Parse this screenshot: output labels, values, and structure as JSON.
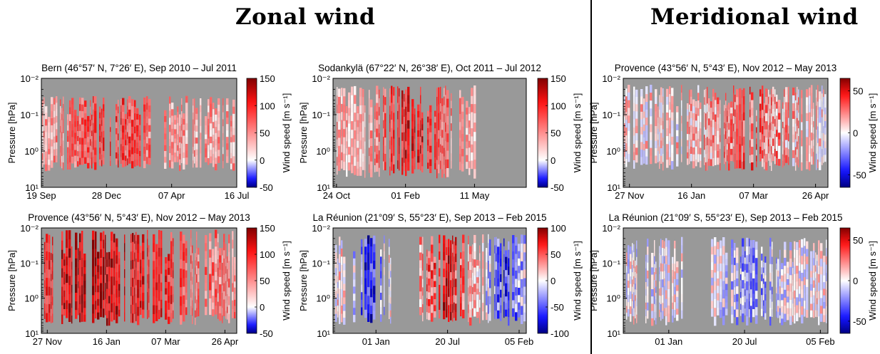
{
  "headings": {
    "zonal": "Zonal wind",
    "meridional": "Meridional wind"
  },
  "colors": {
    "background": "#999999",
    "positive": "#c00000",
    "negative": "#0000c0",
    "zero": "#ffffff"
  },
  "chart_data": [
    {
      "type": "heatmap",
      "title": "Bern (46°57′ N, 7°26′ E), Sep 2010 – Jul 2011",
      "ylabel": "Pressure [hPa]",
      "colorbar_label": "Wind speed [m s⁻¹]",
      "clim": [
        -50,
        150
      ],
      "colorbar_ticks": [
        "150",
        "100",
        "50",
        "0",
        "-50"
      ],
      "y_scale": "log",
      "ylim": [
        10,
        0.01
      ],
      "y_ticks": [
        "10⁻²",
        "10⁻¹",
        "10⁰",
        "10¹"
      ],
      "x_ticks": [
        "19 Sep",
        "28 Dec",
        "07 Apr",
        "16 Jul"
      ],
      "x_days": [
        0,
        100,
        200,
        300
      ],
      "xlim": [
        0,
        300
      ],
      "observation_gaps": [
        [
          165,
          182
        ]
      ],
      "profile_top_hPa": 0.03,
      "profile_bottom_hPa": 3.5,
      "peak_periods": [
        {
          "center": 105,
          "width": 60,
          "value": 90
        }
      ],
      "background_value": 40
    },
    {
      "type": "heatmap",
      "title": "Sodankylä (67°22′ N, 26°38′ E), Oct 2011 – Jul 2012",
      "ylabel": "Pressure [hPa]",
      "colorbar_label": "Wind speed [m s⁻¹]",
      "clim": [
        -50,
        150
      ],
      "colorbar_ticks": [
        "150",
        "100",
        "50",
        "0",
        "-50"
      ],
      "y_scale": "log",
      "ylim": [
        10,
        0.01
      ],
      "y_ticks": [
        "10⁻²",
        "10⁻¹",
        "10⁰",
        "10¹"
      ],
      "x_ticks": [
        "24 Oct",
        "01 Feb",
        "11 May"
      ],
      "x_days": [
        0,
        100,
        200
      ],
      "xlim": [
        -5,
        275
      ],
      "observation_gaps": [
        [
          200,
          275
        ]
      ],
      "profile_top_hPa": 0.015,
      "profile_bottom_hPa": 6,
      "peak_periods": [
        {
          "center": 110,
          "width": 50,
          "value": 110
        }
      ],
      "background_value": 30
    },
    {
      "type": "heatmap",
      "title": "Provence (43°56′ N, 5°43′ E), Nov 2012 – May 2013",
      "ylabel": "Pressure [hPa]",
      "colorbar_label": "Wind speed [m s⁻¹]",
      "clim": [
        -65,
        65
      ],
      "colorbar_ticks": [
        "50",
        "0",
        "-50"
      ],
      "y_scale": "log",
      "ylim": [
        10,
        0.01
      ],
      "y_ticks": [
        "10⁻²",
        "10⁻¹",
        "10⁰",
        "10¹"
      ],
      "x_ticks": [
        "27 Nov",
        "16 Jan",
        "07 Mar",
        "26 Apr"
      ],
      "x_days": [
        0,
        50,
        100,
        150
      ],
      "xlim": [
        -5,
        160
      ],
      "observation_gaps": [],
      "profile_top_hPa": 0.015,
      "profile_bottom_hPa": 3.5,
      "peak_periods": [
        {
          "center": 95,
          "width": 35,
          "value": 30
        }
      ],
      "background_value": 5
    },
    {
      "type": "heatmap",
      "title": "Provence (43°56′ N, 5°43′ E), Nov 2012 – May 2013",
      "ylabel": "Pressure [hPa]",
      "colorbar_label": "Wind speed [m s⁻¹]",
      "clim": [
        -50,
        150
      ],
      "colorbar_ticks": [
        "150",
        "100",
        "50",
        "0",
        "-50"
      ],
      "y_scale": "log",
      "ylim": [
        10,
        0.01
      ],
      "y_ticks": [
        "10⁻²",
        "10⁻¹",
        "10⁰",
        "10¹"
      ],
      "x_ticks": [
        "27 Nov",
        "16 Jan",
        "07 Mar",
        "26 Apr"
      ],
      "x_days": [
        0,
        50,
        100,
        150
      ],
      "xlim": [
        -5,
        160
      ],
      "observation_gaps": [],
      "profile_top_hPa": 0.011,
      "profile_bottom_hPa": 6,
      "peak_periods": [
        {
          "center": 30,
          "width": 40,
          "value": 130
        },
        {
          "center": 90,
          "width": 35,
          "value": 95
        }
      ],
      "background_value": 55
    },
    {
      "type": "heatmap",
      "title": "La Réunion (21°09′ S, 55°23′ E), Sep 2013 – Feb 2015",
      "ylabel": "Pressure [hPa]",
      "colorbar_label": "Wind speed [m s⁻¹]",
      "clim": [
        -100,
        100
      ],
      "colorbar_ticks": [
        "100",
        "50",
        "0",
        "-50",
        "-100"
      ],
      "y_scale": "log",
      "ylim": [
        10,
        0.01
      ],
      "y_ticks": [
        "10⁻²",
        "10⁻¹",
        "10⁰",
        "10¹"
      ],
      "x_ticks": [
        "01 Jan",
        "20 Jul",
        "05 Feb"
      ],
      "x_days": [
        0,
        200,
        400
      ],
      "xlim": [
        -120,
        420
      ],
      "observation_gaps": [
        [
          -85,
          -65
        ],
        [
          40,
          110
        ]
      ],
      "profile_top_hPa": 0.015,
      "profile_bottom_hPa": 6,
      "peak_periods": [
        {
          "center": -20,
          "width": 40,
          "value": -70
        },
        {
          "center": 190,
          "width": 70,
          "value": 70
        },
        {
          "center": 360,
          "width": 50,
          "value": -60
        }
      ],
      "background_value": 10
    },
    {
      "type": "heatmap",
      "title": "La Réunion (21°09′ S, 55°23′ E), Sep 2013 – Feb 2015",
      "ylabel": "Pressure [hPa]",
      "colorbar_label": "Wind speed [m s⁻¹]",
      "clim": [
        -65,
        65
      ],
      "colorbar_ticks": [
        "50",
        "0",
        "-50"
      ],
      "y_scale": "log",
      "ylim": [
        10,
        0.01
      ],
      "y_ticks": [
        "10⁻²",
        "10⁻¹",
        "10⁰",
        "10¹"
      ],
      "x_ticks": [
        "01 Jan",
        "20 Jul",
        "05 Feb"
      ],
      "x_days": [
        0,
        200,
        400
      ],
      "xlim": [
        -120,
        420
      ],
      "observation_gaps": [
        [
          -80,
          -65
        ],
        [
          35,
          110
        ]
      ],
      "profile_top_hPa": 0.018,
      "profile_bottom_hPa": 6,
      "peak_periods": [
        {
          "center": 220,
          "width": 60,
          "value": -25
        }
      ],
      "background_value": 0
    }
  ]
}
